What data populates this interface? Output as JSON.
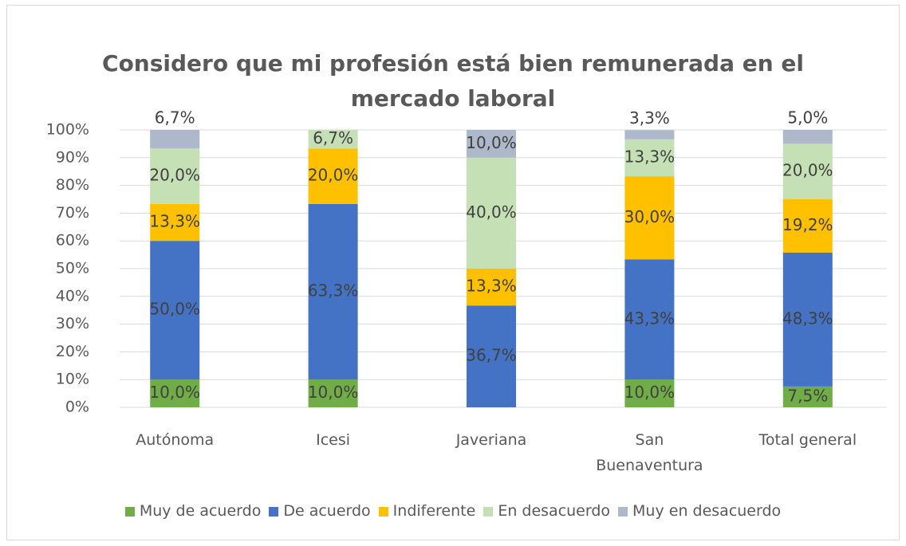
{
  "chart_data": {
    "type": "stacked_bar",
    "title": "Considero que mi profesión está bien remunerada en el mercado laboral",
    "categories": [
      "Autónoma",
      "Icesi",
      "Javeriana",
      "San Buenaventura",
      "Total general"
    ],
    "series": [
      {
        "name": "Muy de acuerdo",
        "color": "#70ad47",
        "values": [
          10.0,
          10.0,
          null,
          10.0,
          7.5
        ],
        "value_labels": [
          "10,0%",
          "10,0%",
          null,
          "10,0%",
          "7,5%"
        ]
      },
      {
        "name": "De acuerdo",
        "color": "#4472c4",
        "values": [
          50.0,
          63.3,
          36.7,
          43.3,
          48.3
        ],
        "value_labels": [
          "50,0%",
          "63,3%",
          "36,7%",
          "43,3%",
          "48,3%"
        ]
      },
      {
        "name": "Indiferente",
        "color": "#ffc000",
        "values": [
          13.3,
          20.0,
          13.3,
          30.0,
          19.2
        ],
        "value_labels": [
          "13,3%",
          "20,0%",
          "13,3%",
          "30,0%",
          "19,2%"
        ]
      },
      {
        "name": "En desacuerdo",
        "color": "#c5e0b4",
        "values": [
          20.0,
          6.7,
          40.0,
          13.3,
          20.0
        ],
        "value_labels": [
          "20,0%",
          "6,7%",
          "40,0%",
          "13,3%",
          "20,0%"
        ]
      },
      {
        "name": "Muy en desacuerdo",
        "color": "#adb9ca",
        "values": [
          6.7,
          null,
          10.0,
          3.3,
          5.0
        ],
        "value_labels": [
          "6,7%",
          null,
          "10,0%",
          "3,3%",
          "5,0%"
        ]
      }
    ],
    "ylim": [
      0,
      100
    ],
    "yticks": [
      {
        "value": 0,
        "label": "0%"
      },
      {
        "value": 10,
        "label": "10%"
      },
      {
        "value": 20,
        "label": "20%"
      },
      {
        "value": 30,
        "label": "30%"
      },
      {
        "value": 40,
        "label": "40%"
      },
      {
        "value": 50,
        "label": "50%"
      },
      {
        "value": 60,
        "label": "60%"
      },
      {
        "value": 70,
        "label": "70%"
      },
      {
        "value": 80,
        "label": "80%"
      },
      {
        "value": 90,
        "label": "90%"
      },
      {
        "value": 100,
        "label": "100%"
      }
    ],
    "grid": true,
    "legend": "bottom"
  }
}
